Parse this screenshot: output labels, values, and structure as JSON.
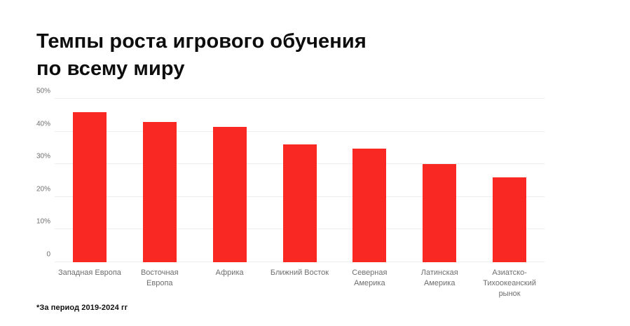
{
  "title": "Темпы роста игрового обучения\nпо всему миру",
  "footnote": "*За период 2019-2024 гг",
  "colors": {
    "background": "#ffffff",
    "bar": "#fa2823",
    "gridline": "#ededed",
    "axis_label": "#6e6e6e",
    "title_text": "#0d0d0d"
  },
  "chart_data": {
    "type": "bar",
    "title": "Темпы роста игрового обучения по всему миру",
    "categories": [
      "Западная Европа",
      "Восточная Европа",
      "Африка",
      "Ближний Восток",
      "Северная Америка",
      "Латинская Америка",
      "Азиатско-Тихоокеанский рынок"
    ],
    "values": [
      46,
      43,
      41.5,
      36,
      34.8,
      30,
      26
    ],
    "unit": "%",
    "xlabel": "",
    "ylabel": "",
    "ylim": [
      0,
      50
    ],
    "yticks": [
      0,
      10,
      20,
      30,
      40,
      50
    ],
    "ytick_labels": [
      "0",
      "10%",
      "20%",
      "30%",
      "40%",
      "50%"
    ],
    "grid": true,
    "legend": false,
    "footnote": "*За период 2019-2024 гг"
  }
}
